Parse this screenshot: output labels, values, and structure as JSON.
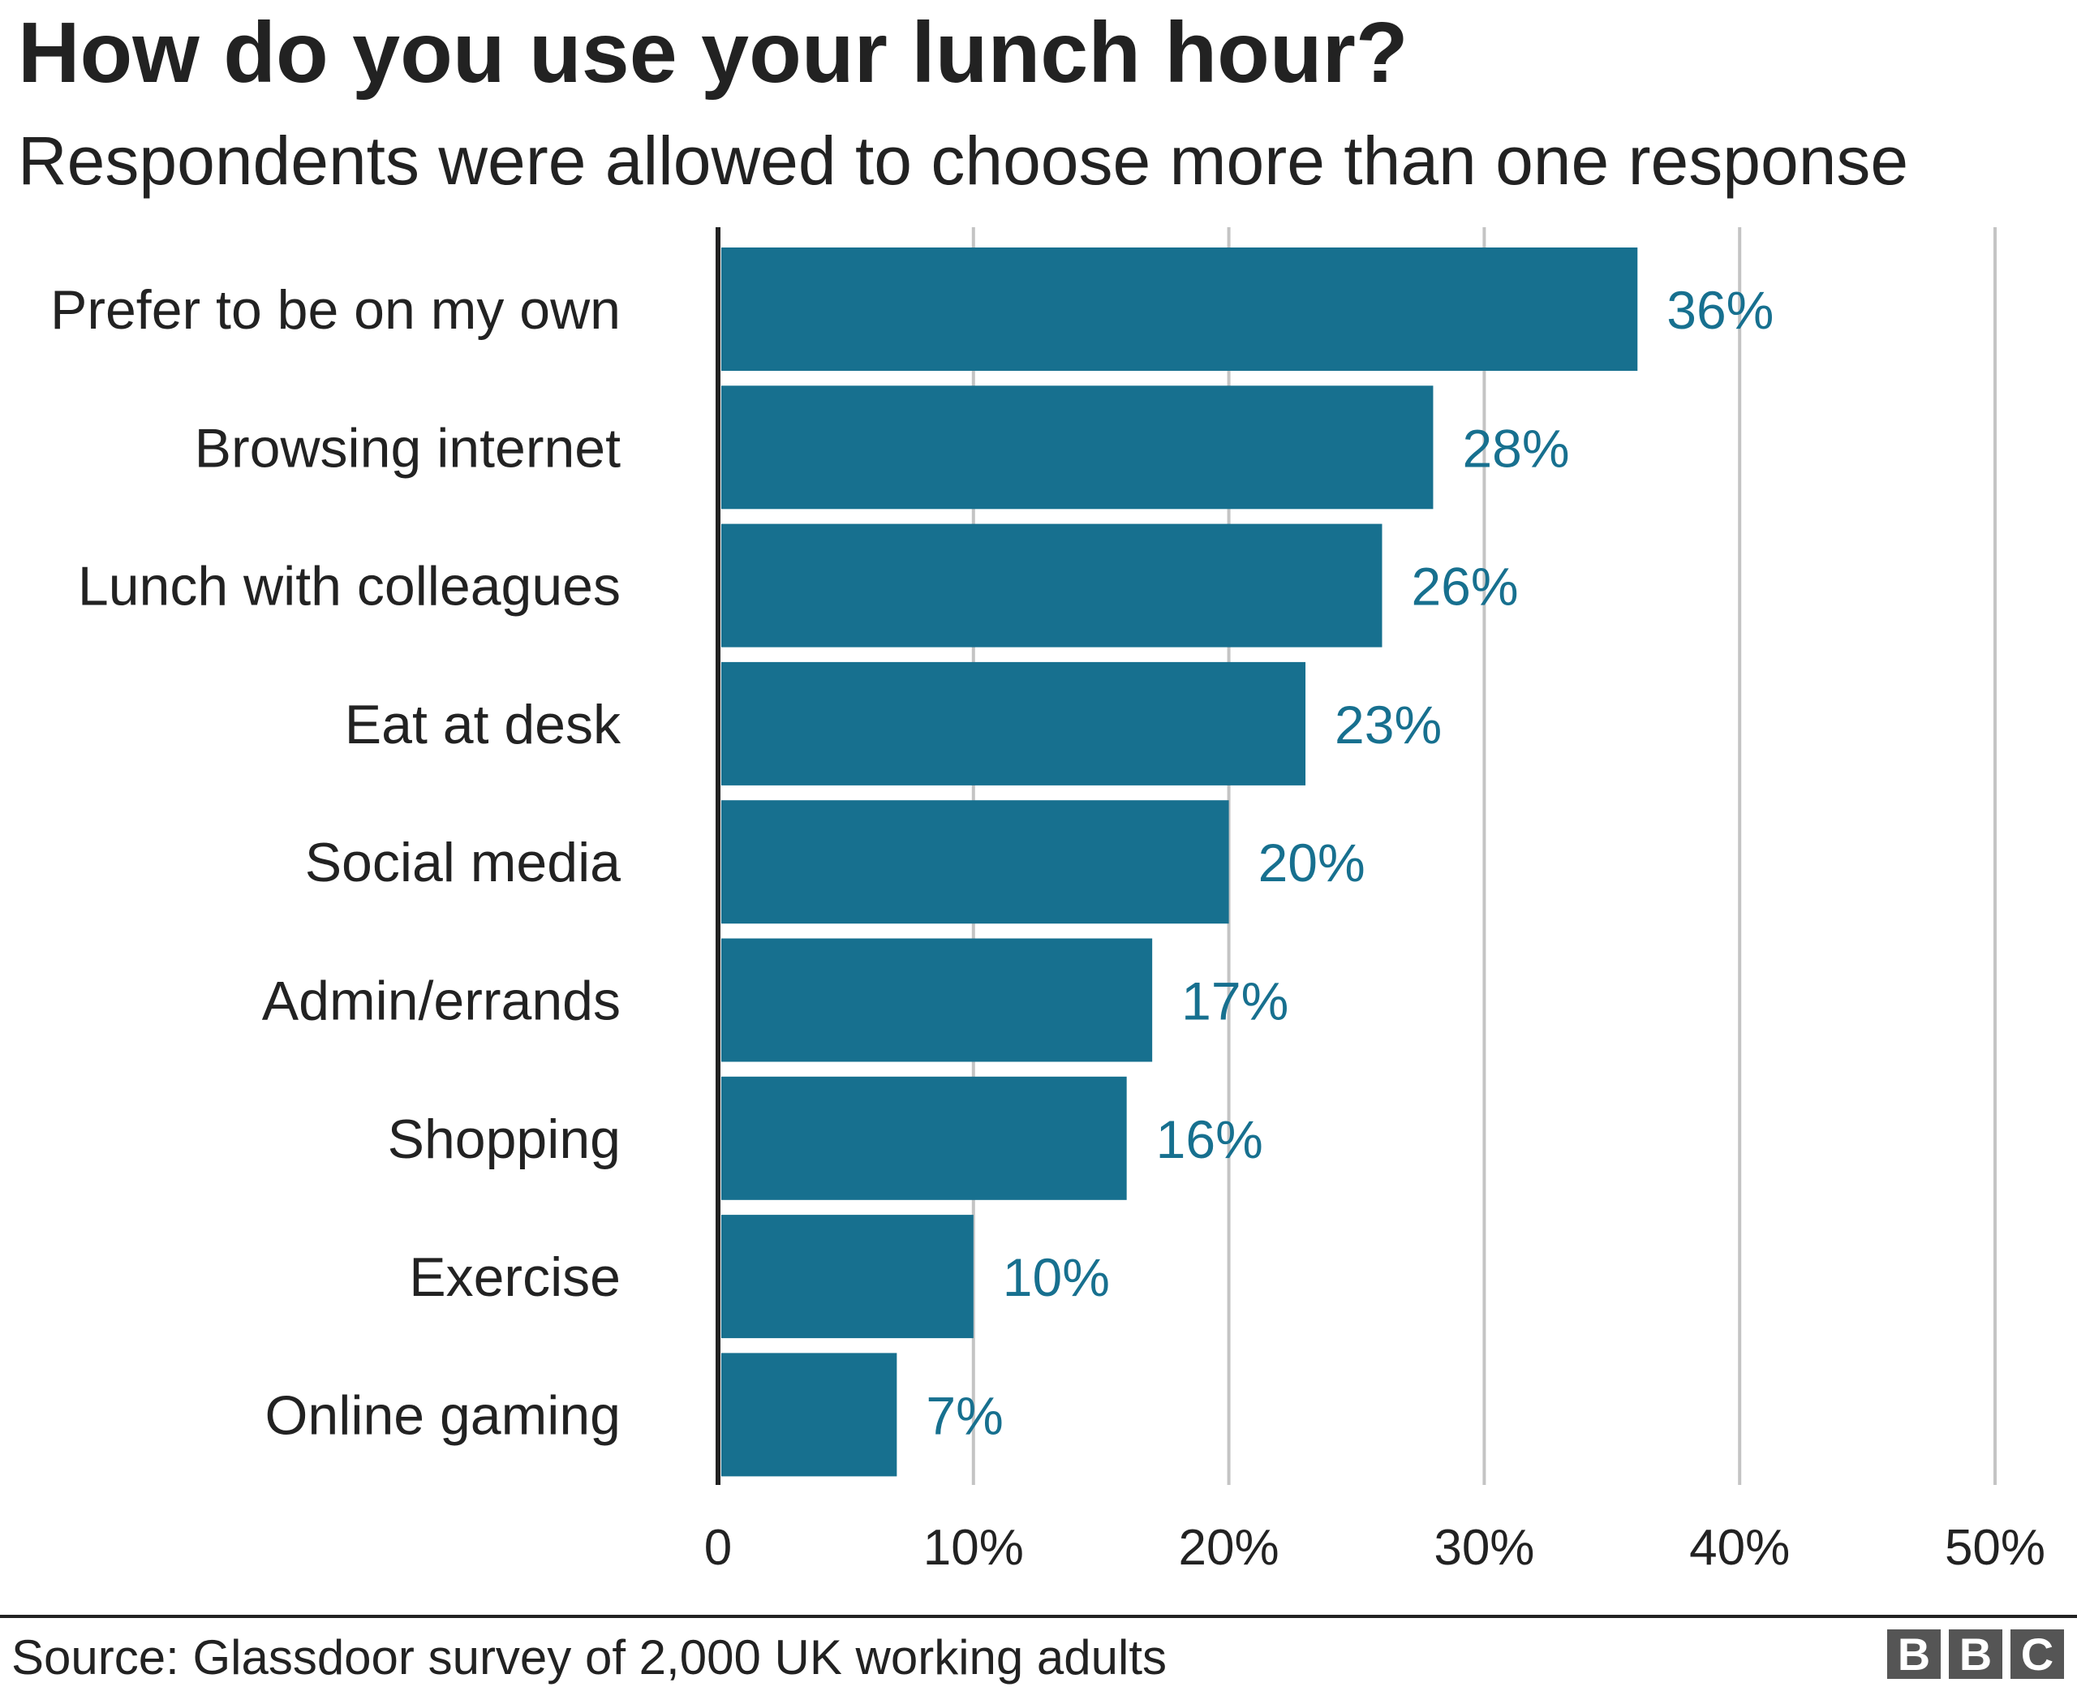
{
  "chart_data": {
    "type": "bar",
    "orientation": "horizontal",
    "title": "How do you use your lunch hour?",
    "subtitle": "Respondents were allowed to choose more than one response",
    "categories": [
      "Prefer to be on my own",
      "Browsing internet",
      "Lunch with colleagues",
      "Eat at desk",
      "Social media",
      "Admin/errands",
      "Shopping",
      "Exercise",
      "Online gaming"
    ],
    "values": [
      36,
      28,
      26,
      23,
      20,
      17,
      16,
      10,
      7
    ],
    "data_labels": [
      "36%",
      "28%",
      "26%",
      "23%",
      "20%",
      "17%",
      "16%",
      "10%",
      "7%"
    ],
    "xlim": [
      0,
      50
    ],
    "xticks": [
      0,
      10,
      20,
      30,
      40,
      50
    ],
    "xtick_labels": [
      "0",
      "10%",
      "20%",
      "30%",
      "40%",
      "50%"
    ],
    "xlabel": "",
    "ylabel": "",
    "grid": "vertical",
    "colors": {
      "bar": "#17708f",
      "label": "#17708f",
      "grid": "#c4c4c4",
      "axis": "#222222"
    }
  },
  "footer": {
    "source": "Source: Glassdoor survey of 2,000 UK working adults",
    "logo": [
      "B",
      "B",
      "C"
    ]
  }
}
